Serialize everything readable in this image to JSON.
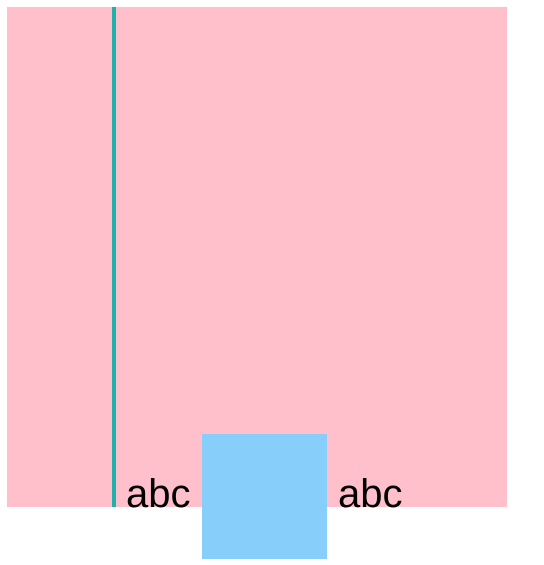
{
  "colors": {
    "background": "#ffffff",
    "pink": "#ffc0cb",
    "teal": "#20b2aa",
    "blue": "#87cefa",
    "text": "#000000"
  },
  "texts": {
    "left": "abc",
    "right": "abc"
  }
}
